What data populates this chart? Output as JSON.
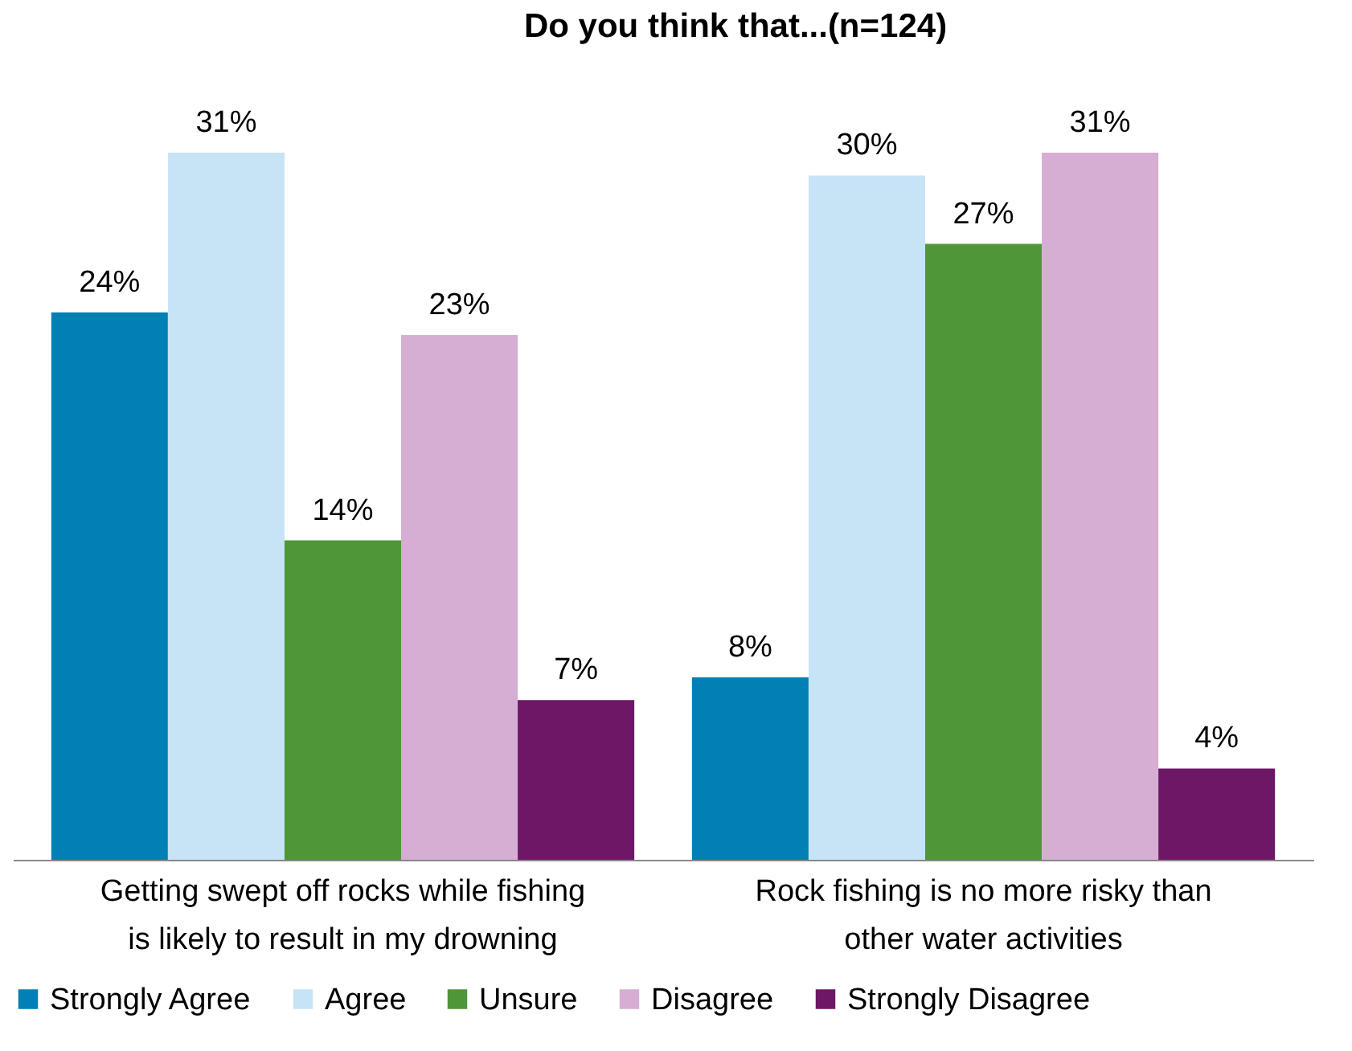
{
  "chart_data": {
    "type": "bar",
    "title": "Do you think that...(n=124)",
    "categories": [
      "Getting swept off rocks while fishing is likely to result in my drowning",
      "Rock fishing is no more risky than other water activities"
    ],
    "series": [
      {
        "name": "Strongly Agree",
        "color": "#0080b4",
        "values": [
          24,
          8
        ],
        "value_labels": [
          "24%",
          "8%"
        ]
      },
      {
        "name": "Agree",
        "color": "#c6e4f6",
        "values": [
          31,
          30
        ],
        "value_labels": [
          "31%",
          "30%"
        ]
      },
      {
        "name": "Unsure",
        "color": "#4f9639",
        "values": [
          14,
          27
        ],
        "value_labels": [
          "14%",
          "27%"
        ]
      },
      {
        "name": "Disagree",
        "color": "#d6aed3",
        "values": [
          23,
          31
        ],
        "value_labels": [
          "23%",
          "31%"
        ]
      },
      {
        "name": "Strongly Disagree",
        "color": "#6d1766",
        "values": [
          7,
          4
        ],
        "value_labels": [
          "7%",
          "4%"
        ]
      }
    ],
    "legend": "bottom",
    "grid": false
  }
}
